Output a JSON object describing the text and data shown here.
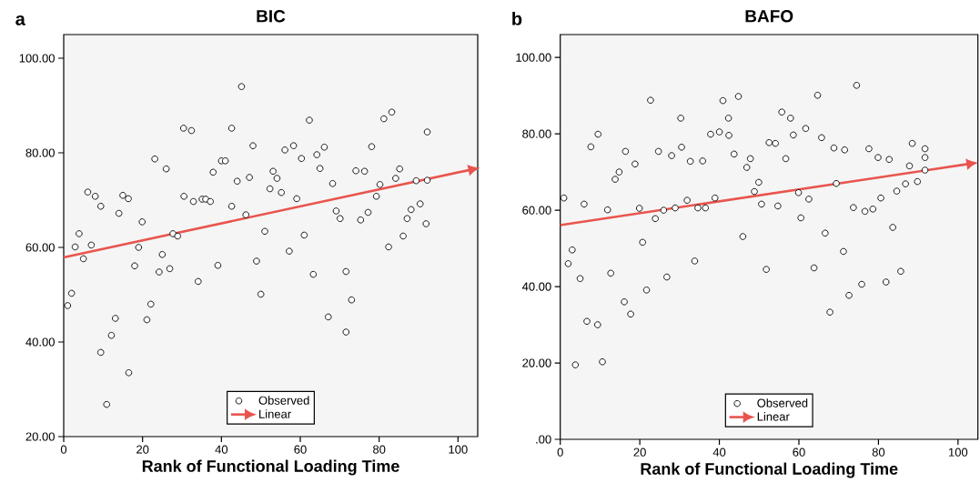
{
  "chart_data": [
    {
      "type": "scatter",
      "title": "BIC",
      "xlabel": "Rank of Functional Loading Time",
      "annotations": [
        "a"
      ],
      "xlim": [
        0,
        105
      ],
      "ylim": [
        20,
        105
      ],
      "xticks": [
        0,
        20,
        40,
        60,
        80,
        100
      ],
      "yticks": [
        {
          "value": 20,
          "label": "20.00"
        },
        {
          "value": 40,
          "label": "40.00"
        },
        {
          "value": 60,
          "label": "60.00"
        },
        {
          "value": 80,
          "label": "80.00"
        },
        {
          "value": 100,
          "label": "100.00"
        }
      ],
      "legend": "bottom",
      "series": [
        {
          "name": "Observed",
          "marker": "circle",
          "color": "#000000",
          "x": [
            1.0,
            2.0,
            2.9,
            3.9,
            5.0,
            6.1,
            7.0,
            8.0,
            9.4,
            9.4,
            10.9,
            12.1,
            13.1,
            14.0,
            15.0,
            16.4,
            16.5,
            18.0,
            19.0,
            19.9,
            21.1,
            22.1,
            23.1,
            24.2,
            25.0,
            26.0,
            26.9,
            27.7,
            28.9,
            30.4,
            30.5,
            32.4,
            32.9,
            34.1,
            35.1,
            36.0,
            37.2,
            37.9,
            39.1,
            40.0,
            41.0,
            42.6,
            42.6,
            44.0,
            45.1,
            46.2,
            47.1,
            48.0,
            48.9,
            50.0,
            51.0,
            52.3,
            53.1,
            54.1,
            55.2,
            56.1,
            57.2,
            58.3,
            59.1,
            60.3,
            61.0,
            62.3,
            63.3,
            64.2,
            65.0,
            66.1,
            67.1,
            68.2,
            69.1,
            70.1,
            71.6,
            71.6,
            73.0,
            74.1,
            75.3,
            76.3,
            77.2,
            78.1,
            79.3,
            80.2,
            81.2,
            82.4,
            83.2,
            84.2,
            85.2,
            86.1,
            87.1,
            88.1,
            89.4,
            90.4,
            91.9,
            92.2,
            92.2
          ],
          "values": [
            47.7,
            50.3,
            60.1,
            62.9,
            57.6,
            71.7,
            60.5,
            70.8,
            68.7,
            37.8,
            26.8,
            41.4,
            45.0,
            67.2,
            71.0,
            70.3,
            33.5,
            56.1,
            60.0,
            65.4,
            44.7,
            48.0,
            78.7,
            54.8,
            58.5,
            76.6,
            55.5,
            62.9,
            62.4,
            85.2,
            70.8,
            84.7,
            69.7,
            52.8,
            70.2,
            70.2,
            69.7,
            75.9,
            56.2,
            78.3,
            78.3,
            85.2,
            68.7,
            74.0,
            94.0,
            66.9,
            74.8,
            81.5,
            57.1,
            50.1,
            63.4,
            72.4,
            76.1,
            74.6,
            71.6,
            80.6,
            59.2,
            81.5,
            70.3,
            78.8,
            62.6,
            86.9,
            54.3,
            79.6,
            76.7,
            81.2,
            45.3,
            73.5,
            67.7,
            66.1,
            54.9,
            42.1,
            48.9,
            76.2,
            65.8,
            76.1,
            67.4,
            81.3,
            70.8,
            73.3,
            87.2,
            60.1,
            88.6,
            74.6,
            76.6,
            62.4,
            66.1,
            68.0,
            74.1,
            69.2,
            65.0,
            74.2,
            84.4
          ]
        },
        {
          "name": "Linear",
          "type": "line",
          "marker": "none",
          "color": "#e8554e",
          "x": [
            0,
            103.1
          ],
          "values": [
            57.9,
            76.4
          ]
        }
      ]
    },
    {
      "type": "scatter",
      "title": "BAFO",
      "xlabel": "Rank of Functional Loading Time",
      "annotations": [
        "b"
      ],
      "xlim": [
        0,
        105
      ],
      "ylim": [
        0,
        106
      ],
      "xticks": [
        0,
        20,
        40,
        60,
        80,
        100
      ],
      "yticks": [
        {
          "value": 0,
          "label": ".00"
        },
        {
          "value": 20,
          "label": "20.00"
        },
        {
          "value": 40,
          "label": "40.00"
        },
        {
          "value": 60,
          "label": "60.00"
        },
        {
          "value": 80,
          "label": "80.00"
        },
        {
          "value": 100,
          "label": "100.00"
        }
      ],
      "legend": "bottom",
      "series": [
        {
          "name": "Observed",
          "marker": "circle",
          "color": "#000000",
          "x": [
            0.9,
            2.0,
            3.0,
            3.8,
            5.0,
            6.0,
            6.7,
            7.7,
            9.4,
            9.5,
            10.6,
            11.9,
            12.7,
            13.8,
            14.8,
            16.1,
            16.4,
            17.7,
            18.8,
            19.9,
            20.7,
            21.7,
            22.7,
            23.9,
            24.7,
            26.0,
            26.8,
            28.0,
            28.9,
            30.3,
            30.5,
            31.9,
            32.7,
            33.8,
            34.6,
            35.8,
            36.5,
            37.8,
            38.9,
            40.0,
            40.9,
            42.3,
            42.4,
            43.7,
            44.8,
            45.9,
            46.9,
            47.8,
            48.8,
            49.9,
            50.6,
            51.8,
            52.5,
            54.1,
            54.7,
            55.7,
            56.7,
            57.9,
            58.6,
            59.9,
            60.5,
            61.7,
            62.5,
            63.8,
            64.7,
            65.7,
            66.6,
            67.8,
            68.8,
            69.4,
            71.2,
            71.5,
            72.6,
            73.7,
            74.5,
            75.8,
            76.6,
            77.6,
            78.6,
            79.9,
            80.6,
            81.9,
            82.7,
            83.6,
            84.6,
            85.6,
            86.8,
            87.8,
            88.5,
            89.8,
            91.7,
            91.7,
            91.7
          ],
          "values": [
            63.2,
            46.0,
            49.6,
            19.5,
            42.1,
            61.6,
            30.9,
            76.6,
            30.0,
            79.9,
            20.3,
            60.1,
            43.5,
            68.1,
            70.0,
            36.0,
            75.4,
            32.8,
            72.1,
            60.5,
            51.6,
            39.1,
            88.8,
            57.8,
            75.4,
            60.0,
            42.5,
            74.3,
            60.6,
            84.1,
            76.5,
            62.6,
            72.8,
            46.7,
            60.6,
            72.9,
            60.6,
            79.9,
            63.2,
            80.5,
            88.7,
            84.1,
            79.6,
            74.7,
            89.8,
            53.1,
            71.2,
            73.5,
            64.9,
            67.3,
            61.6,
            44.5,
            77.7,
            77.5,
            61.1,
            85.7,
            73.5,
            84.1,
            79.7,
            64.6,
            58.0,
            81.4,
            62.9,
            44.9,
            90.1,
            79.0,
            54.0,
            33.3,
            76.3,
            67.0,
            49.2,
            75.8,
            37.7,
            60.7,
            92.7,
            40.6,
            59.7,
            76.1,
            60.3,
            73.8,
            63.2,
            41.2,
            73.3,
            55.5,
            65.0,
            44.0,
            66.9,
            71.6,
            77.5,
            67.5,
            76.1,
            73.8,
            70.5
          ]
        },
        {
          "name": "Linear",
          "type": "line",
          "marker": "none",
          "color": "#e8554e",
          "x": [
            0,
            102.6
          ],
          "values": [
            56.1,
            72.1
          ]
        }
      ]
    }
  ]
}
